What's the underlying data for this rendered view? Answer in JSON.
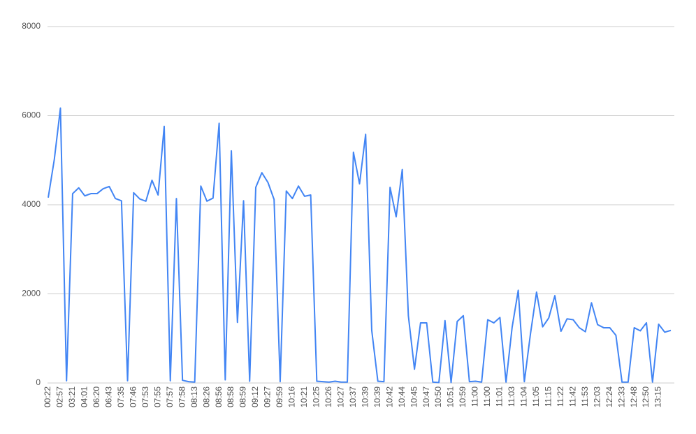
{
  "chart_data": {
    "type": "line",
    "categories": [
      "00:22",
      null,
      "02:57",
      null,
      "03:21",
      null,
      "04:01",
      null,
      "06:20",
      null,
      "06:43",
      null,
      "07:35",
      null,
      "07:46",
      null,
      "07:53",
      null,
      "07:55",
      null,
      "07:57",
      null,
      "07:58",
      null,
      "08:13",
      null,
      "08:26",
      null,
      "08:56",
      null,
      "08:58",
      null,
      "08:59",
      null,
      "09:12",
      null,
      "09:27",
      null,
      "09:59",
      null,
      "10:16",
      null,
      "10:21",
      null,
      "10:25",
      null,
      "10:26",
      null,
      "10:27",
      null,
      "10:37",
      null,
      "10:39",
      null,
      "10:39",
      null,
      "10:42",
      null,
      "10:44",
      null,
      "10:45",
      null,
      "10:47",
      null,
      "10:50",
      null,
      "10:51",
      null,
      "10:59",
      null,
      "11:00",
      null,
      "11:00",
      null,
      "11:01",
      null,
      "11:03",
      null,
      "11:04",
      null,
      "11:05",
      null,
      "11:15",
      null,
      "11:22",
      null,
      "11:42",
      null,
      "11:53",
      null,
      "12:03",
      null,
      "12:24",
      null,
      "12:33",
      null,
      "12:48",
      null,
      "12:50",
      null,
      "13:15",
      null,
      null
    ],
    "series": [
      {
        "color": "#4285f4",
        "values": [
          4160,
          5020,
          6170,
          50,
          4250,
          4380,
          4200,
          4250,
          4250,
          4360,
          4410,
          4140,
          4090,
          50,
          4270,
          4130,
          4080,
          4550,
          4220,
          5760,
          50,
          4140,
          60,
          30,
          20,
          4420,
          4080,
          4150,
          5830,
          70,
          5210,
          1360,
          4090,
          40,
          4390,
          4720,
          4500,
          4120,
          30,
          4310,
          4140,
          4420,
          4190,
          4220,
          40,
          30,
          20,
          40,
          20,
          20,
          5180,
          4470,
          5580,
          1180,
          40,
          30,
          4390,
          3730,
          4790,
          1510,
          310,
          1350,
          1350,
          20,
          10,
          1400,
          10,
          1380,
          1510,
          30,
          40,
          20,
          1420,
          1350,
          1470,
          20,
          1250,
          2080,
          30,
          1100,
          2040,
          1260,
          1460,
          1960,
          1160,
          1440,
          1420,
          1240,
          1150,
          1800,
          1310,
          1240,
          1240,
          1070,
          20,
          20,
          1240,
          1170,
          1350,
          20,
          1320,
          1140,
          1180
        ]
      }
    ],
    "ylim": [
      0,
      8000
    ],
    "yticks": [
      0,
      2000,
      4000,
      6000,
      8000
    ],
    "grid": true
  }
}
